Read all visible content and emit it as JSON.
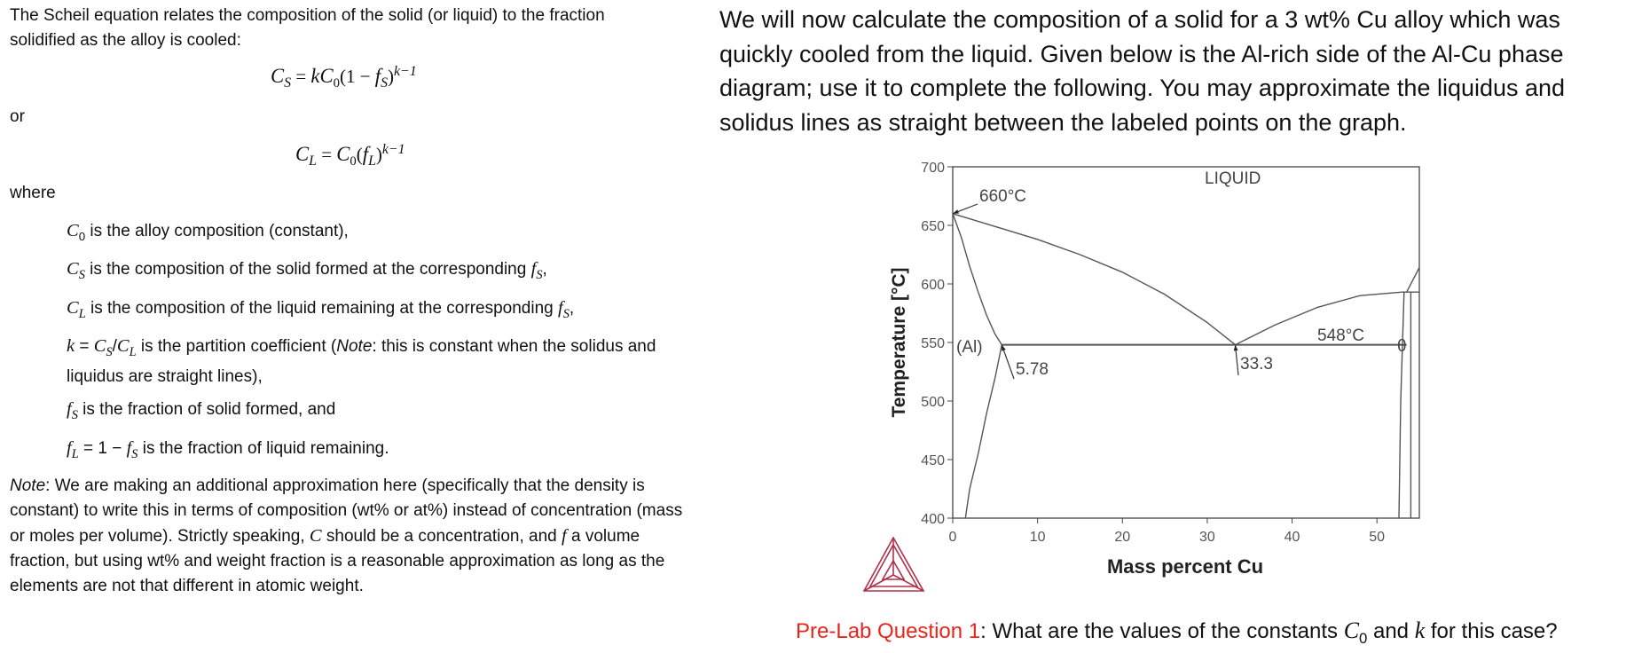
{
  "left": {
    "intro": "The Scheil equation relates the composition of the solid (or liquid) to the fraction solidified as the alloy is cooled:",
    "equation_1": [
      "C",
      "S",
      " = ",
      "k",
      "C",
      "0",
      "(1 − ",
      "f",
      "S",
      ")",
      "k−1"
    ],
    "or": "or",
    "equation_2": [
      "C",
      "L",
      " = ",
      "C",
      "0",
      "(",
      "f",
      "L",
      ")",
      "k−1"
    ],
    "where": "where",
    "definitions": [
      [
        "C",
        "0",
        " is the alloy composition (constant),"
      ],
      [
        "C",
        "S",
        " is the composition of the solid formed at the corresponding ",
        "f",
        "S",
        ","
      ],
      [
        "C",
        "L",
        " is the composition of the liquid remaining at the corresponding ",
        "f",
        "S",
        ","
      ],
      [
        "k",
        " = ",
        "C",
        "S",
        "/",
        "C",
        "L",
        " is the partition coefficient (",
        "Note",
        ": this is constant when the solidus and liquidus are straight lines),"
      ],
      [
        "f",
        "S",
        " is the fraction of solid formed, and"
      ],
      [
        "f",
        "L",
        " = 1 − ",
        "f",
        "S",
        " is the fraction of liquid remaining."
      ]
    ],
    "note": [
      "Note",
      ": We are making an additional approximation here (specifically that the density is constant) to write this in terms of composition (wt% or at%) instead of concentration (mass or moles per volume). Strictly speaking, ",
      "C",
      " should be a concentration, and ",
      "f",
      " a volume fraction, but using wt% and weight fraction is a reasonable approximation as long as the elements are not that different in atomic weight."
    ]
  },
  "right": {
    "paragraph": "We will now calculate the composition of a solid for a 3 wt% Cu alloy which was quickly cooled from the liquid. Given below is the Al-rich side of the Al-Cu phase diagram; use it to complete the following. You may approximate the liquidus and solidus lines as straight between the labeled points on the graph.",
    "question": [
      "Pre-Lab Question 1",
      ": What are the values of the constants ",
      "C",
      "0",
      " and ",
      "k",
      " for this case?"
    ]
  },
  "chart_data": {
    "type": "line",
    "xlabel": "Mass percent Cu",
    "ylabel": "Temperature [°C]",
    "xlim": [
      0,
      55
    ],
    "ylim": [
      400,
      700
    ],
    "xticks": [
      0,
      10,
      20,
      30,
      40,
      50
    ],
    "yticks": [
      400,
      450,
      500,
      550,
      600,
      650,
      700
    ],
    "series": [
      {
        "color": "#555555",
        "x": [
          0,
          5,
          10,
          15,
          20,
          25,
          30,
          33.3
        ],
        "y": [
          660,
          649,
          638,
          625,
          610,
          591,
          567,
          548
        ]
      },
      {
        "color": "#555555",
        "x": [
          0,
          1,
          2,
          3,
          4,
          5,
          5.78
        ],
        "y": [
          660,
          640,
          615,
          593,
          573,
          557,
          548
        ]
      },
      {
        "color": "#555555",
        "x": [
          5.78,
          5,
          4,
          3,
          2,
          1.5
        ],
        "y": [
          548,
          520,
          490,
          455,
          425,
          400
        ]
      },
      {
        "color": "#555555",
        "x": [
          5.78,
          53.5
        ],
        "y": [
          548,
          548
        ]
      },
      {
        "color": "#555555",
        "x": [
          33.3,
          38,
          43,
          48,
          53
        ],
        "y": [
          548,
          565,
          580,
          590,
          593
        ]
      },
      {
        "color": "#555555",
        "x": [
          53,
          55
        ],
        "y": [
          593,
          593
        ]
      },
      {
        "color": "#555555",
        "x": [
          53.5,
          55
        ],
        "y": [
          593,
          614
        ]
      },
      {
        "color": "#555555",
        "x": [
          53.2,
          52.8,
          52.6
        ],
        "y": [
          593,
          500,
          400
        ]
      },
      {
        "color": "#555555",
        "x": [
          54,
          54
        ],
        "y": [
          593,
          400
        ]
      }
    ],
    "annotations": [
      "660°C",
      "LIQUID",
      "(Al)",
      "5.78",
      "33.3",
      "548°C",
      "θ"
    ]
  }
}
